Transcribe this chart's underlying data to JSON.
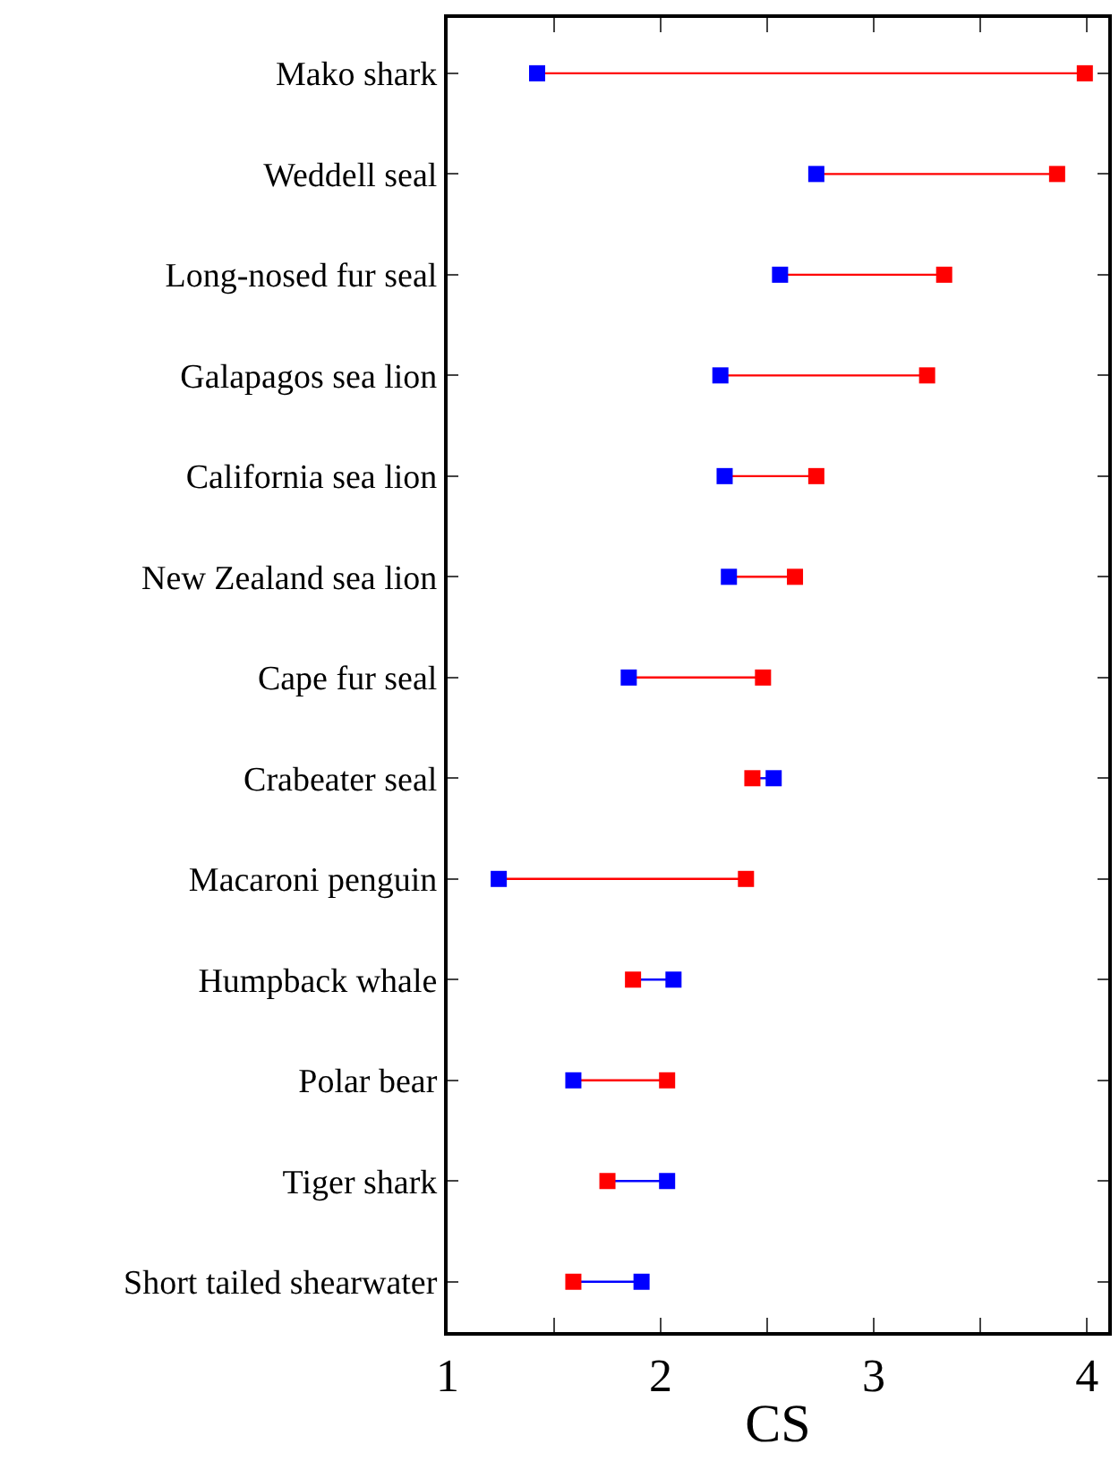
{
  "chart_data": {
    "type": "scatter",
    "orientation": "horizontal",
    "xlabel": "CS",
    "categories": [
      "Mako shark",
      "Weddell seal",
      "Long-nosed fur seal",
      "Galapagos sea lion",
      "California sea lion",
      "New Zealand sea lion",
      "Cape fur seal",
      "Crabeater seal",
      "Macaroni penguin",
      "Humpback whale",
      "Polar bear",
      "Tiger shark",
      "Short tailed shearwater"
    ],
    "series": [
      {
        "color": "#ff0000",
        "values": [
          3.99,
          3.86,
          3.33,
          3.25,
          2.73,
          2.63,
          2.48,
          2.43,
          2.4,
          1.87,
          2.03,
          1.75,
          1.59
        ]
      },
      {
        "color": "#0000ff",
        "values": [
          1.42,
          2.73,
          2.56,
          2.28,
          2.3,
          2.32,
          1.85,
          2.53,
          1.24,
          2.06,
          1.59,
          2.03,
          1.91
        ]
      }
    ],
    "marker": "square",
    "xlim": [
      1,
      4.1
    ],
    "xticks": [
      1,
      {
        "value": 1.5,
        "label": null
      },
      2,
      {
        "value": 2.5,
        "label": null
      },
      3,
      {
        "value": 3.5,
        "label": null
      },
      4
    ],
    "grid": false
  }
}
